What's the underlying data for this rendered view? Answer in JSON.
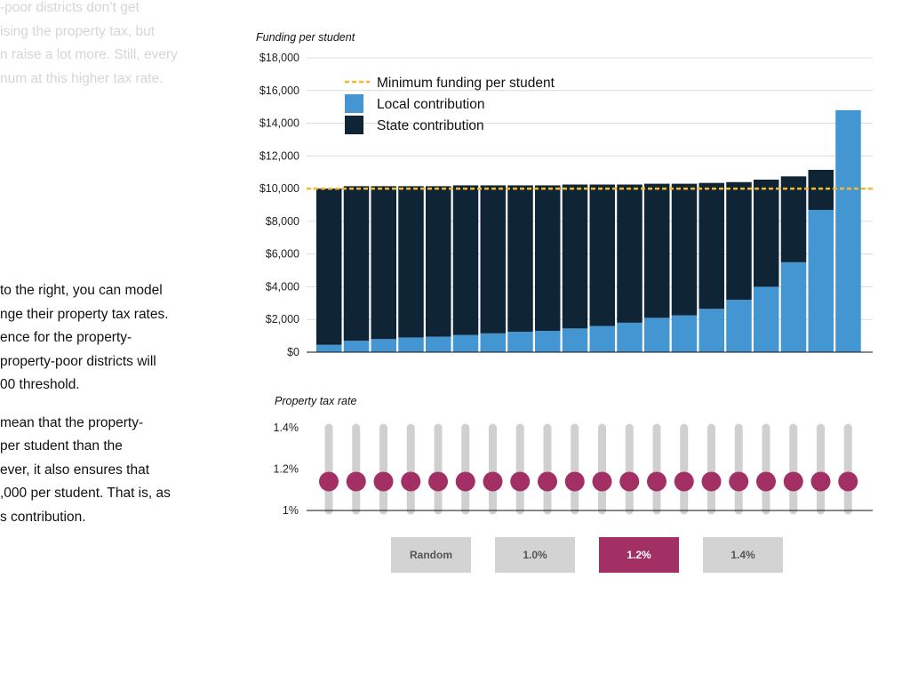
{
  "intro_text": {
    "lines": [
      "-poor districts don’t get",
      "ising the property tax, but",
      "n raise a lot more. Still, every",
      "num at this higher tax rate."
    ]
  },
  "body_text": {
    "paragraph1": [
      "to the right, you can model",
      "nge their property tax rates.",
      "ence for the property-",
      "property-poor districts will",
      "00 threshold."
    ],
    "paragraph2": [
      "mean that the property-",
      "per student than the",
      "ever, it also ensures that",
      ",000 per student. That is, as",
      "s contribution."
    ]
  },
  "chart_data": [
    {
      "type": "bar",
      "stacked": true,
      "title": "Funding per student",
      "ylim": [
        0,
        18000
      ],
      "yticks": [
        0,
        2000,
        4000,
        6000,
        8000,
        10000,
        12000,
        14000,
        16000,
        18000
      ],
      "ytick_labels": [
        "$0",
        "$2,000",
        "$4,000",
        "$6,000",
        "$8,000",
        "$10,000",
        "$12,000",
        "$14,000",
        "$16,000",
        "$18,000"
      ],
      "grid": true,
      "legend_position": "top-left",
      "reference_line": {
        "name": "Minimum funding per student",
        "value": 10000,
        "color": "#f5b82e",
        "style": "dashed"
      },
      "series": [
        {
          "name": "Local contribution",
          "color": "#4396d1",
          "values": [
            450,
            700,
            800,
            900,
            950,
            1050,
            1150,
            1250,
            1300,
            1450,
            1600,
            1800,
            2100,
            2250,
            2650,
            3200,
            4000,
            5500,
            8700,
            14800
          ]
        },
        {
          "name": "State contribution",
          "color": "#0f2535",
          "values": [
            9550,
            9450,
            9350,
            9250,
            9200,
            9150,
            9050,
            8950,
            8900,
            8800,
            8650,
            8450,
            8200,
            8050,
            7700,
            7200,
            6550,
            5250,
            2450,
            0
          ]
        }
      ]
    },
    {
      "type": "scatter",
      "title": "Property tax rate",
      "ylim": [
        1.0,
        1.4
      ],
      "yticks": [
        1.0,
        1.2,
        1.4
      ],
      "ytick_labels": [
        "1%",
        "1.2%",
        "1.4%"
      ],
      "point_color": "#a33065",
      "values": [
        1.14,
        1.14,
        1.14,
        1.14,
        1.14,
        1.14,
        1.14,
        1.14,
        1.14,
        1.14,
        1.14,
        1.14,
        1.14,
        1.14,
        1.14,
        1.14,
        1.14,
        1.14,
        1.14,
        1.14
      ]
    }
  ],
  "buttons": [
    {
      "label": "Random",
      "active": false
    },
    {
      "label": "1.0%",
      "active": false
    },
    {
      "label": "1.2%",
      "active": true
    },
    {
      "label": "1.4%",
      "active": false
    }
  ]
}
